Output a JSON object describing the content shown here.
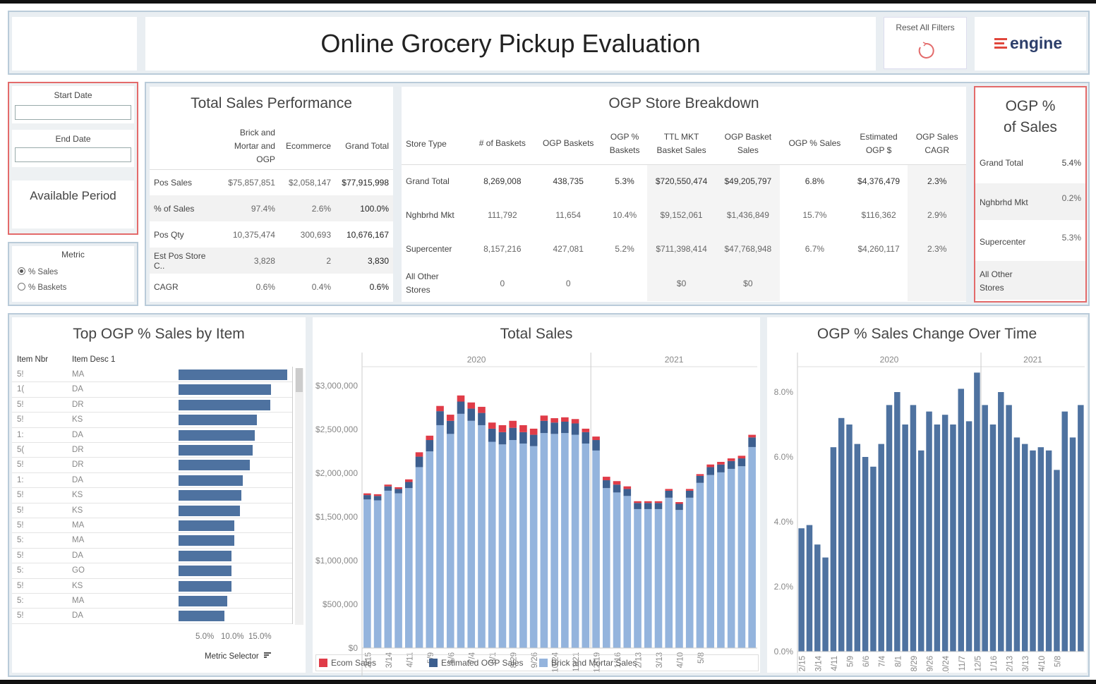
{
  "header": {
    "title": "Online Grocery Pickup Evaluation",
    "reset_label": "Reset All Filters",
    "logo_text": "engine"
  },
  "filters": {
    "start_date_label": "Start Date",
    "start_date_value": "",
    "end_date_label": "End Date",
    "end_date_value": "",
    "available_period_label": "Available Period",
    "metric_label": "Metric",
    "metric_options": [
      "% Sales",
      "% Baskets"
    ],
    "metric_selected": "% Sales"
  },
  "total_sales_performance": {
    "title": "Total Sales Performance",
    "col_headers": [
      "Brick and\nMortar and\nOGP",
      "Ecommerce",
      "Grand Total"
    ],
    "rows": [
      {
        "label": "Pos Sales",
        "values": [
          "$75,857,851",
          "$2,058,147",
          "$77,915,998"
        ]
      },
      {
        "label": "% of Sales",
        "values": [
          "97.4%",
          "2.6%",
          "100.0%"
        ]
      },
      {
        "label": "Pos Qty",
        "values": [
          "10,375,474",
          "300,693",
          "10,676,167"
        ]
      },
      {
        "label": "Est Pos Store C..",
        "values": [
          "3,828",
          "2",
          "3,830"
        ]
      },
      {
        "label": "CAGR",
        "values": [
          "0.6%",
          "0.4%",
          "0.6%"
        ]
      }
    ]
  },
  "ogp_store_breakdown": {
    "title": "OGP Store Breakdown",
    "col_headers": [
      "Store Type",
      "# of Baskets",
      "OGP Baskets",
      "OGP %\nBaskets",
      "TTL MKT\nBasket Sales",
      "OGP Basket\nSales",
      "OGP % Sales",
      "Estimated\nOGP $",
      "OGP Sales\nCAGR"
    ],
    "rows": [
      {
        "label": "Grand Total",
        "values": [
          "8,269,008",
          "438,735",
          "5.3%",
          "$720,550,474",
          "$49,205,797",
          "6.8%",
          "$4,376,479",
          "2.3%"
        ]
      },
      {
        "label": "Nghbrhd Mkt",
        "values": [
          "111,792",
          "11,654",
          "10.4%",
          "$9,152,061",
          "$1,436,849",
          "15.7%",
          "$116,362",
          "2.9%"
        ]
      },
      {
        "label": "Supercenter",
        "values": [
          "8,157,216",
          "427,081",
          "5.2%",
          "$711,398,414",
          "$47,768,948",
          "6.7%",
          "$4,260,117",
          "2.3%"
        ]
      },
      {
        "label": "All Other\nStores",
        "values": [
          "0",
          "0",
          "",
          "$0",
          "$0",
          "",
          "",
          ""
        ]
      }
    ]
  },
  "ogp_pct_sales": {
    "title": "OGP %\nof Sales",
    "rows": [
      {
        "label": "Grand Total",
        "value": "5.4%"
      },
      {
        "label": "Nghbrhd Mkt",
        "value": "0.2%"
      },
      {
        "label": "Supercenter",
        "value": "5.3%"
      },
      {
        "label": "All Other\nStores",
        "value": ""
      }
    ]
  },
  "top_items": {
    "title": "Top OGP % Sales by Item",
    "col_item_nbr": "Item Nbr",
    "col_item_desc": "Item Desc 1",
    "axis_ticks": [
      "5.0%",
      "10.0%",
      "15.0%"
    ],
    "metric_selector_label": "Metric Selector",
    "rows": [
      {
        "nbr": "5!",
        "desc": "MA",
        "value": 15.8
      },
      {
        "nbr": "1(",
        "desc": "DA",
        "value": 13.4
      },
      {
        "nbr": "5!",
        "desc": "DR",
        "value": 13.3
      },
      {
        "nbr": "5!",
        "desc": "KS",
        "value": 11.4
      },
      {
        "nbr": "1:",
        "desc": "DA",
        "value": 11.1
      },
      {
        "nbr": "5(",
        "desc": "DR",
        "value": 10.8
      },
      {
        "nbr": "5!",
        "desc": "DR",
        "value": 10.4
      },
      {
        "nbr": "1:",
        "desc": "DA",
        "value": 9.3
      },
      {
        "nbr": "5!",
        "desc": "KS",
        "value": 9.1
      },
      {
        "nbr": "5!",
        "desc": "KS",
        "value": 8.9
      },
      {
        "nbr": "5!",
        "desc": "MA",
        "value": 8.1
      },
      {
        "nbr": "5:",
        "desc": "MA",
        "value": 8.1
      },
      {
        "nbr": "5!",
        "desc": "DA",
        "value": 7.7
      },
      {
        "nbr": "5:",
        "desc": "GO",
        "value": 7.7
      },
      {
        "nbr": "5!",
        "desc": "KS",
        "value": 7.7
      },
      {
        "nbr": "5:",
        "desc": "MA",
        "value": 7.1
      },
      {
        "nbr": "5!",
        "desc": "DA",
        "value": 6.7
      }
    ]
  },
  "chart_data": [
    {
      "type": "bar",
      "stacked": true,
      "title": "Total Sales",
      "year_headers": [
        "2020",
        "2021"
      ],
      "year_split_index": 22,
      "ylim": [
        0,
        3300000
      ],
      "y_ticks": [
        "$0",
        "$500,000",
        "$1,000,000",
        "$1,500,000",
        "$2,000,000",
        "$2,500,000",
        "$3,000,000"
      ],
      "y_tick_values": [
        0,
        500000,
        1000000,
        1500000,
        2000000,
        2500000,
        3000000
      ],
      "x_tick_labels": [
        "2/15",
        "3/14",
        "4/11",
        "5/9",
        "6/6",
        "7/4",
        "8/1",
        "8/29",
        "9/26",
        "10/24",
        "11/21",
        "12/19",
        "1/16",
        "2/13",
        "3/13",
        "4/10",
        "5/8"
      ],
      "legend": [
        {
          "name": "Ecom Sales",
          "color": "#e03c48"
        },
        {
          "name": "Estimated OGP Sales",
          "color": "#3d5f8f"
        },
        {
          "name": "Brick and Mortar Sales",
          "color": "#94b4dd"
        }
      ],
      "series": [
        {
          "name": "Brick and Mortar Sales",
          "color": "#94b4dd",
          "values": [
            1700000,
            1690000,
            1800000,
            1770000,
            1830000,
            2070000,
            2250000,
            2550000,
            2450000,
            2680000,
            2600000,
            2550000,
            2360000,
            2330000,
            2380000,
            2340000,
            2310000,
            2460000,
            2450000,
            2460000,
            2440000,
            2340000,
            2260000,
            1830000,
            1780000,
            1740000,
            1590000,
            1590000,
            1590000,
            1720000,
            1580000,
            1720000,
            1890000,
            1980000,
            2010000,
            2050000,
            2080000,
            2300000
          ]
        },
        {
          "name": "Estimated OGP Sales",
          "color": "#3d5f8f",
          "values": [
            50000,
            50000,
            50000,
            50000,
            70000,
            120000,
            130000,
            160000,
            150000,
            140000,
            140000,
            140000,
            150000,
            140000,
            140000,
            130000,
            130000,
            140000,
            130000,
            130000,
            130000,
            130000,
            120000,
            90000,
            90000,
            80000,
            70000,
            70000,
            70000,
            80000,
            70000,
            80000,
            80000,
            90000,
            90000,
            90000,
            90000,
            110000
          ]
        },
        {
          "name": "Ecom Sales",
          "color": "#e03c48",
          "values": [
            20000,
            20000,
            20000,
            20000,
            30000,
            50000,
            50000,
            60000,
            70000,
            70000,
            70000,
            70000,
            70000,
            80000,
            80000,
            80000,
            70000,
            60000,
            50000,
            50000,
            50000,
            40000,
            40000,
            40000,
            40000,
            30000,
            20000,
            20000,
            20000,
            20000,
            20000,
            20000,
            20000,
            30000,
            30000,
            30000,
            30000,
            30000
          ]
        }
      ]
    },
    {
      "type": "bar",
      "title": "OGP % Sales Change Over Time",
      "year_headers": [
        "2020",
        "2021"
      ],
      "year_split_index": 23,
      "ylim": [
        0,
        9
      ],
      "y_ticks": [
        "0.0%",
        "2.0%",
        "4.0%",
        "6.0%",
        "8.0%"
      ],
      "y_tick_values": [
        0,
        2,
        4,
        6,
        8
      ],
      "x_tick_labels": [
        "2/15",
        "3/14",
        "4/11",
        "5/9",
        "6/6",
        "7/4",
        "8/1",
        "8/29",
        "9/26",
        "10/24",
        "11/7",
        "12/5",
        "1/16",
        "2/13",
        "3/13",
        "4/10",
        "5/8"
      ],
      "series": [
        {
          "name": "OGP % Sales",
          "color": "#4e72a0",
          "values": [
            3.8,
            3.9,
            3.3,
            2.9,
            6.3,
            7.2,
            7.0,
            6.4,
            6.0,
            5.7,
            6.4,
            7.6,
            8.0,
            7.0,
            7.6,
            6.2,
            7.4,
            7.0,
            7.3,
            7.0,
            8.1,
            7.1,
            8.6,
            7.6,
            7.0,
            8.0,
            7.6,
            6.6,
            6.4,
            6.2,
            6.3,
            6.2,
            5.6,
            7.4,
            6.6,
            7.6
          ]
        }
      ]
    }
  ]
}
